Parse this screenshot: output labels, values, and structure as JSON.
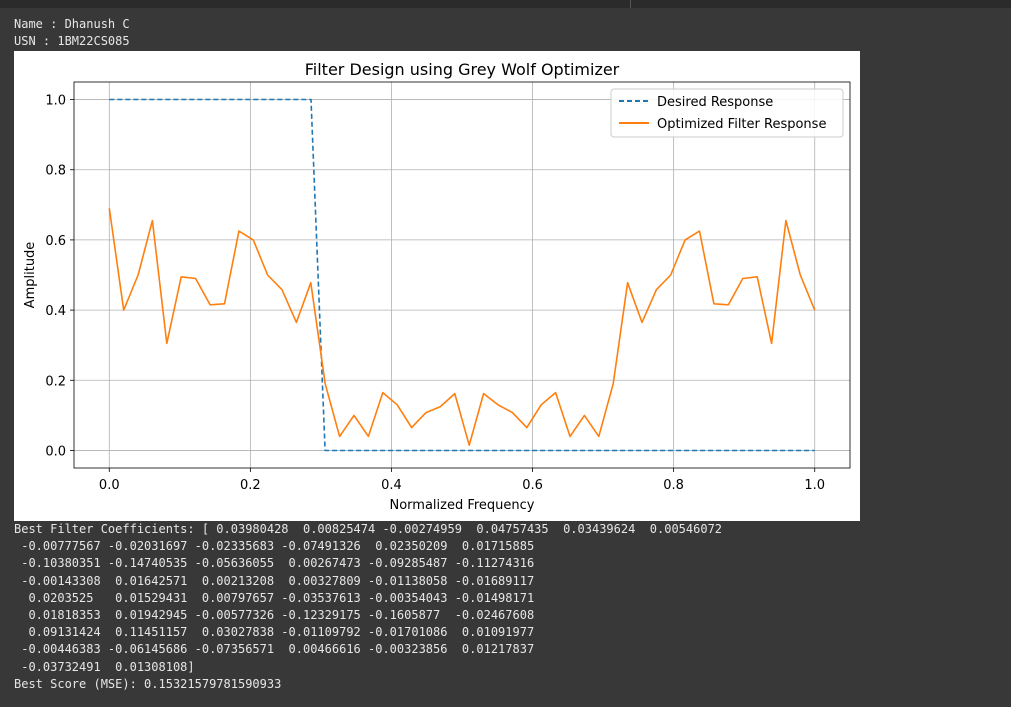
{
  "header": {
    "name_line": "Name : Dhanush C",
    "usn_line": "USN : 1BM22CS085"
  },
  "chart_data": {
    "type": "line",
    "title": "Filter Design using Grey Wolf Optimizer",
    "xlabel": "Normalized Frequency",
    "ylabel": "Amplitude",
    "xlim": [
      -0.05,
      1.05
    ],
    "ylim": [
      -0.05,
      1.05
    ],
    "xticks": [
      0.0,
      0.2,
      0.4,
      0.6,
      0.8,
      1.0
    ],
    "xtick_labels": [
      "0.0",
      "0.2",
      "0.4",
      "0.6",
      "0.8",
      "1.0"
    ],
    "yticks": [
      0.0,
      0.2,
      0.4,
      0.6,
      0.8,
      1.0
    ],
    "ytick_labels": [
      "0.0",
      "0.2",
      "0.4",
      "0.6",
      "0.8",
      "1.0"
    ],
    "grid": true,
    "legend": "top-right",
    "series": [
      {
        "name": "Desired Response",
        "color": "#1f77b4",
        "style": "dashed",
        "x": [
          0.0,
          0.286,
          0.306,
          1.0
        ],
        "y": [
          1.0,
          1.0,
          0.0,
          0.0
        ]
      },
      {
        "name": "Optimized Filter Response",
        "color": "#ff7f0e",
        "style": "solid",
        "x": [
          0.0,
          0.0204,
          0.0408,
          0.0612,
          0.0816,
          0.102,
          0.1224,
          0.1429,
          0.1633,
          0.1837,
          0.2041,
          0.2245,
          0.2449,
          0.2653,
          0.2857,
          0.3061,
          0.3265,
          0.3469,
          0.3673,
          0.3878,
          0.4082,
          0.4286,
          0.449,
          0.4694,
          0.4898,
          0.5102,
          0.5306,
          0.551,
          0.5714,
          0.5918,
          0.6122,
          0.6327,
          0.6531,
          0.6735,
          0.6939,
          0.7143,
          0.7347,
          0.7551,
          0.7755,
          0.7959,
          0.8163,
          0.8367,
          0.8571,
          0.8776,
          0.898,
          0.9184,
          0.9388,
          0.9592,
          0.9796,
          1.0
        ],
        "y": [
          0.69,
          0.4,
          0.5,
          0.655,
          0.305,
          0.495,
          0.49,
          0.415,
          0.418,
          0.625,
          0.6,
          0.5,
          0.458,
          0.365,
          0.478,
          0.19,
          0.04,
          0.1,
          0.04,
          0.165,
          0.13,
          0.065,
          0.108,
          0.125,
          0.162,
          0.015,
          0.162,
          0.13,
          0.108,
          0.065,
          0.13,
          0.165,
          0.04,
          0.1,
          0.04,
          0.19,
          0.478,
          0.365,
          0.458,
          0.5,
          0.6,
          0.625,
          0.418,
          0.415,
          0.49,
          0.495,
          0.305,
          0.655,
          0.5,
          0.4
        ]
      }
    ]
  },
  "output": {
    "lines": [
      "Best Filter Coefficients: [ 0.03980428  0.00825474 -0.00274959  0.04757435  0.03439624  0.00546072",
      " -0.00777567 -0.02031697 -0.02335683 -0.07491326  0.02350209  0.01715885",
      " -0.10380351 -0.14740535 -0.05636055  0.00267473 -0.09285487 -0.11274316",
      " -0.00143308  0.01642571  0.00213208  0.00327809 -0.01138058 -0.01689117",
      "  0.0203525   0.01529431  0.00797657 -0.03537613 -0.00354043 -0.01498171",
      "  0.01818353  0.01942945 -0.00577326 -0.12329175 -0.1605877  -0.02467608",
      "  0.09131424  0.11451157  0.03027838 -0.01109792 -0.01701086  0.01091977",
      " -0.00446383 -0.06145686 -0.07356571  0.00466616 -0.00323856  0.01217837",
      " -0.03732491  0.01308108]",
      "Best Score (MSE): 0.15321579781590933"
    ]
  }
}
